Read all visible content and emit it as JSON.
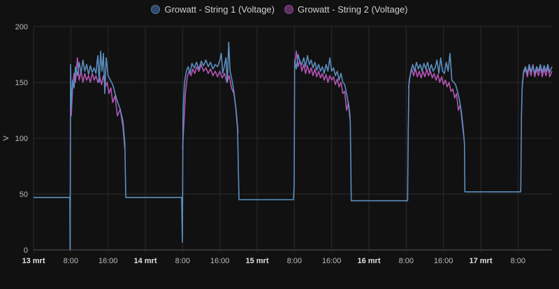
{
  "chart_data": {
    "type": "line",
    "title": "",
    "ylabel": "V",
    "xlabel": "",
    "ylim": [
      0,
      200
    ],
    "yticks": [
      "0",
      "50",
      "100",
      "150",
      "200"
    ],
    "x_unit": "hours since 13 mrt 00:00",
    "xlim": [
      0,
      111.3
    ],
    "xticks": [
      {
        "h": 0,
        "label": "13 mrt",
        "major": true
      },
      {
        "h": 8,
        "label": "8:00"
      },
      {
        "h": 16,
        "label": "16:00"
      },
      {
        "h": 24,
        "label": "14 mrt",
        "major": true
      },
      {
        "h": 32,
        "label": "8:00"
      },
      {
        "h": 40,
        "label": "16:00"
      },
      {
        "h": 48,
        "label": "15 mrt",
        "major": true
      },
      {
        "h": 56,
        "label": "8:00"
      },
      {
        "h": 64,
        "label": "16:00"
      },
      {
        "h": 72,
        "label": "16 mrt",
        "major": true
      },
      {
        "h": 80,
        "label": "8:00"
      },
      {
        "h": 88,
        "label": "16:00"
      },
      {
        "h": 96,
        "label": "17 mrt",
        "major": true
      },
      {
        "h": 104,
        "label": "8:00"
      }
    ],
    "grid": true,
    "legend_position": "top-center",
    "series": [
      {
        "name": "Growatt - String 1 (Voltage)",
        "color": "#5b8fc0",
        "points": [
          [
            0,
            47
          ],
          [
            7.8,
            47
          ],
          [
            7.85,
            0
          ],
          [
            7.95,
            166
          ],
          [
            8.1,
            128
          ],
          [
            8.4,
            152
          ],
          [
            8.7,
            145
          ],
          [
            9.0,
            164
          ],
          [
            9.4,
            156
          ],
          [
            9.8,
            168
          ],
          [
            10.2,
            158
          ],
          [
            10.6,
            170
          ],
          [
            11.0,
            160
          ],
          [
            11.4,
            166
          ],
          [
            11.8,
            157
          ],
          [
            12.2,
            165
          ],
          [
            12.6,
            159
          ],
          [
            13.0,
            163
          ],
          [
            13.4,
            158
          ],
          [
            13.8,
            174
          ],
          [
            14.1,
            150
          ],
          [
            14.4,
            178
          ],
          [
            14.7,
            160
          ],
          [
            15.0,
            176
          ],
          [
            15.3,
            140
          ],
          [
            15.6,
            172
          ],
          [
            16.0,
            156
          ],
          [
            16.5,
            152
          ],
          [
            17.0,
            148
          ],
          [
            17.5,
            140
          ],
          [
            18.0,
            133
          ],
          [
            18.6,
            126
          ],
          [
            19.2,
            115
          ],
          [
            19.6,
            95
          ],
          [
            19.8,
            47
          ],
          [
            31.8,
            47
          ],
          [
            31.95,
            7
          ],
          [
            32.1,
            125
          ],
          [
            32.4,
            150
          ],
          [
            32.8,
            160
          ],
          [
            33.2,
            164
          ],
          [
            33.6,
            158
          ],
          [
            34.0,
            167
          ],
          [
            34.5,
            163
          ],
          [
            35.0,
            168
          ],
          [
            35.5,
            162
          ],
          [
            36.0,
            169
          ],
          [
            36.5,
            165
          ],
          [
            37.0,
            170
          ],
          [
            37.5,
            164
          ],
          [
            38.0,
            168
          ],
          [
            38.5,
            162
          ],
          [
            39.0,
            166
          ],
          [
            39.5,
            164
          ],
          [
            40.0,
            170
          ],
          [
            40.3,
            176
          ],
          [
            40.6,
            158
          ],
          [
            41.0,
            165
          ],
          [
            41.3,
            172
          ],
          [
            41.6,
            150
          ],
          [
            41.9,
            186
          ],
          [
            42.2,
            160
          ],
          [
            42.6,
            152
          ],
          [
            43.0,
            142
          ],
          [
            43.4,
            128
          ],
          [
            43.8,
            108
          ],
          [
            44.1,
            45
          ],
          [
            55.8,
            45
          ],
          [
            55.95,
            58
          ],
          [
            56.05,
            170
          ],
          [
            56.4,
            162
          ],
          [
            56.8,
            175
          ],
          [
            57.2,
            168
          ],
          [
            57.6,
            166
          ],
          [
            58.0,
            172
          ],
          [
            58.4,
            164
          ],
          [
            58.8,
            174
          ],
          [
            59.2,
            166
          ],
          [
            59.6,
            170
          ],
          [
            60.0,
            163
          ],
          [
            60.4,
            168
          ],
          [
            60.8,
            161
          ],
          [
            61.2,
            166
          ],
          [
            61.6,
            160
          ],
          [
            62.0,
            164
          ],
          [
            62.4,
            158
          ],
          [
            62.8,
            166
          ],
          [
            63.2,
            160
          ],
          [
            63.6,
            172
          ],
          [
            64.0,
            160
          ],
          [
            64.4,
            163
          ],
          [
            64.8,
            156
          ],
          [
            65.2,
            160
          ],
          [
            65.6,
            152
          ],
          [
            66.0,
            158
          ],
          [
            66.4,
            150
          ],
          [
            66.8,
            148
          ],
          [
            67.2,
            140
          ],
          [
            67.6,
            130
          ],
          [
            68.0,
            115
          ],
          [
            68.2,
            44
          ],
          [
            80.3,
            44
          ],
          [
            80.45,
            110
          ],
          [
            80.6,
            150
          ],
          [
            81.0,
            160
          ],
          [
            81.4,
            166
          ],
          [
            81.8,
            160
          ],
          [
            82.2,
            168
          ],
          [
            82.6,
            162
          ],
          [
            83.0,
            166
          ],
          [
            83.4,
            160
          ],
          [
            83.8,
            167
          ],
          [
            84.2,
            162
          ],
          [
            84.6,
            168
          ],
          [
            85.0,
            160
          ],
          [
            85.4,
            166
          ],
          [
            85.8,
            160
          ],
          [
            86.2,
            163
          ],
          [
            86.6,
            170
          ],
          [
            87.0,
            158
          ],
          [
            87.4,
            172
          ],
          [
            87.8,
            160
          ],
          [
            88.2,
            158
          ],
          [
            88.6,
            168
          ],
          [
            89.0,
            160
          ],
          [
            89.4,
            176
          ],
          [
            89.8,
            152
          ],
          [
            90.2,
            150
          ],
          [
            90.6,
            148
          ],
          [
            91.0,
            142
          ],
          [
            91.4,
            135
          ],
          [
            91.8,
            125
          ],
          [
            92.2,
            110
          ],
          [
            92.5,
            95
          ],
          [
            92.6,
            52
          ],
          [
            104.6,
            52
          ],
          [
            104.75,
            120
          ],
          [
            104.9,
            145
          ],
          [
            105.2,
            160
          ],
          [
            105.6,
            164
          ],
          [
            106.0,
            158
          ],
          [
            106.4,
            166
          ],
          [
            106.8,
            160
          ],
          [
            107.2,
            165
          ],
          [
            107.6,
            158
          ],
          [
            108.0,
            164
          ],
          [
            108.4,
            160
          ],
          [
            108.8,
            166
          ],
          [
            109.2,
            159
          ],
          [
            109.6,
            165
          ],
          [
            110.0,
            160
          ],
          [
            110.4,
            166
          ],
          [
            110.8,
            159
          ],
          [
            111.3,
            164
          ]
        ]
      },
      {
        "name": "Growatt - String 2 (Voltage)",
        "color": "#b455b6",
        "points": [
          [
            7.95,
            150
          ],
          [
            8.1,
            120
          ],
          [
            8.4,
            148
          ],
          [
            8.7,
            158
          ],
          [
            9.0,
            150
          ],
          [
            9.4,
            172
          ],
          [
            9.8,
            152
          ],
          [
            10.2,
            160
          ],
          [
            10.6,
            150
          ],
          [
            11.0,
            158
          ],
          [
            11.4,
            152
          ],
          [
            11.8,
            156
          ],
          [
            12.2,
            150
          ],
          [
            12.6,
            158
          ],
          [
            13.0,
            152
          ],
          [
            13.4,
            156
          ],
          [
            13.8,
            150
          ],
          [
            14.2,
            155
          ],
          [
            14.6,
            148
          ],
          [
            15.0,
            156
          ],
          [
            15.4,
            146
          ],
          [
            15.8,
            150
          ],
          [
            16.2,
            140
          ],
          [
            16.6,
            145
          ],
          [
            17.0,
            132
          ],
          [
            17.5,
            138
          ],
          [
            18.0,
            120
          ],
          [
            18.6,
            126
          ],
          [
            19.2,
            110
          ],
          [
            19.6,
            90
          ],
          null,
          [
            32.0,
            90
          ],
          [
            32.3,
            115
          ],
          [
            32.6,
            140
          ],
          [
            33.0,
            155
          ],
          [
            33.4,
            160
          ],
          [
            33.8,
            156
          ],
          [
            34.2,
            162
          ],
          [
            34.6,
            158
          ],
          [
            35.0,
            164
          ],
          [
            35.5,
            160
          ],
          [
            36.0,
            166
          ],
          [
            36.5,
            160
          ],
          [
            37.0,
            163
          ],
          [
            37.5,
            158
          ],
          [
            38.0,
            162
          ],
          [
            38.5,
            156
          ],
          [
            39.0,
            160
          ],
          [
            39.5,
            155
          ],
          [
            40.0,
            160
          ],
          [
            40.5,
            154
          ],
          [
            41.0,
            158
          ],
          [
            41.5,
            150
          ],
          [
            42.0,
            156
          ],
          [
            42.5,
            145
          ],
          [
            43.0,
            140
          ],
          [
            43.5,
            125
          ],
          [
            43.9,
            105
          ],
          null,
          [
            56.05,
            165
          ],
          [
            56.4,
            178
          ],
          [
            56.8,
            164
          ],
          [
            57.2,
            170
          ],
          [
            57.6,
            160
          ],
          [
            58.0,
            166
          ],
          [
            58.4,
            158
          ],
          [
            58.8,
            165
          ],
          [
            59.2,
            158
          ],
          [
            59.6,
            163
          ],
          [
            60.0,
            156
          ],
          [
            60.4,
            162
          ],
          [
            60.8,
            155
          ],
          [
            61.2,
            160
          ],
          [
            61.6,
            154
          ],
          [
            62.0,
            158
          ],
          [
            62.4,
            152
          ],
          [
            62.8,
            157
          ],
          [
            63.2,
            150
          ],
          [
            63.6,
            156
          ],
          [
            64.0,
            152
          ],
          [
            64.4,
            155
          ],
          [
            64.8,
            148
          ],
          [
            65.2,
            153
          ],
          [
            65.6,
            146
          ],
          [
            66.0,
            150
          ],
          [
            66.4,
            140
          ],
          [
            66.8,
            142
          ],
          [
            67.2,
            125
          ],
          [
            67.6,
            132
          ],
          [
            68.0,
            118
          ],
          null,
          [
            80.5,
            145
          ],
          [
            80.8,
            155
          ],
          [
            81.2,
            162
          ],
          [
            81.6,
            156
          ],
          [
            82.0,
            162
          ],
          [
            82.4,
            155
          ],
          [
            82.8,
            160
          ],
          [
            83.2,
            154
          ],
          [
            83.6,
            160
          ],
          [
            84.0,
            155
          ],
          [
            84.4,
            162
          ],
          [
            84.8,
            156
          ],
          [
            85.2,
            160
          ],
          [
            85.6,
            154
          ],
          [
            86.0,
            158
          ],
          [
            86.4,
            152
          ],
          [
            86.8,
            157
          ],
          [
            87.2,
            150
          ],
          [
            87.6,
            155
          ],
          [
            88.0,
            148
          ],
          [
            88.4,
            152
          ],
          [
            88.8,
            146
          ],
          [
            89.2,
            150
          ],
          [
            89.6,
            142
          ],
          [
            90.0,
            144
          ],
          [
            90.4,
            136
          ],
          [
            90.8,
            140
          ],
          [
            91.2,
            125
          ],
          [
            91.6,
            130
          ],
          [
            92.0,
            115
          ],
          [
            92.4,
            100
          ],
          null,
          [
            104.9,
            148
          ],
          [
            105.2,
            158
          ],
          [
            105.6,
            162
          ],
          [
            106.0,
            155
          ],
          [
            106.4,
            164
          ],
          [
            106.8,
            156
          ],
          [
            107.2,
            166
          ],
          [
            107.6,
            155
          ],
          [
            108.0,
            162
          ],
          [
            108.4,
            156
          ],
          [
            108.8,
            164
          ],
          [
            109.2,
            155
          ],
          [
            109.6,
            162
          ],
          [
            110.0,
            156
          ],
          [
            110.4,
            164
          ],
          [
            110.8,
            155
          ],
          [
            111.3,
            160
          ]
        ]
      }
    ]
  }
}
